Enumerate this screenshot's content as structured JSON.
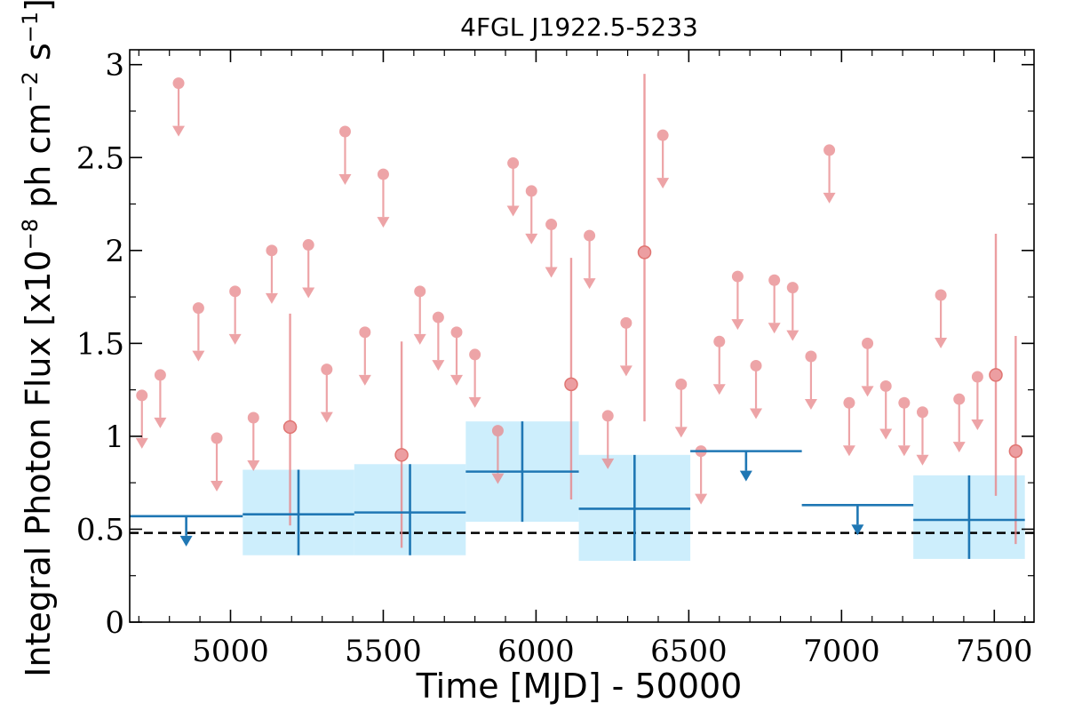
{
  "chart_data": {
    "type": "scatter",
    "title": "4FGL J1922.5-5233",
    "xlabel": "Time [MJD] - 50000",
    "ylabel": "Integral Photon Flux [x10",
    "ylabel_exp": "−8",
    "ylabel_mid": " ph cm",
    "ylabel_exp2": "−2",
    "ylabel_end": " s",
    "ylabel_exp3": "−1",
    "ylabel_close": "]",
    "xlim": [
      4670,
      7630
    ],
    "ylim": [
      0,
      3.08
    ],
    "xticks": [
      5000,
      5500,
      6000,
      6500,
      7000,
      7500
    ],
    "xtick_labels": [
      "5000",
      "5500",
      "6000",
      "6500",
      "7000",
      "7500"
    ],
    "yticks": [
      0,
      0.5,
      1,
      1.5,
      2,
      2.5,
      3
    ],
    "ytick_labels": [
      "0",
      "0.5",
      "1",
      "1.5",
      "2",
      "2.5",
      "3"
    ],
    "reference_line": 0.48,
    "colors": {
      "fine_bins": "#e8868a",
      "coarse_bins": "#1f77b4",
      "error_band": "#cdeefc",
      "reference": "#000000"
    },
    "fine_upper_limits": [
      {
        "x": 4710,
        "y": 1.22
      },
      {
        "x": 4770,
        "y": 1.33
      },
      {
        "x": 4830,
        "y": 2.9
      },
      {
        "x": 4895,
        "y": 1.69
      },
      {
        "x": 4955,
        "y": 0.99
      },
      {
        "x": 5015,
        "y": 1.78
      },
      {
        "x": 5075,
        "y": 1.1
      },
      {
        "x": 5135,
        "y": 2.0
      },
      {
        "x": 5255,
        "y": 2.03
      },
      {
        "x": 5315,
        "y": 1.36
      },
      {
        "x": 5375,
        "y": 2.64
      },
      {
        "x": 5440,
        "y": 1.56
      },
      {
        "x": 5500,
        "y": 2.41
      },
      {
        "x": 5620,
        "y": 1.78
      },
      {
        "x": 5680,
        "y": 1.64
      },
      {
        "x": 5740,
        "y": 1.56
      },
      {
        "x": 5800,
        "y": 1.44
      },
      {
        "x": 5875,
        "y": 1.03
      },
      {
        "x": 5925,
        "y": 2.47
      },
      {
        "x": 5985,
        "y": 2.32
      },
      {
        "x": 6050,
        "y": 2.14
      },
      {
        "x": 6175,
        "y": 2.08
      },
      {
        "x": 6235,
        "y": 1.11
      },
      {
        "x": 6295,
        "y": 1.61
      },
      {
        "x": 6415,
        "y": 2.62
      },
      {
        "x": 6475,
        "y": 1.28
      },
      {
        "x": 6540,
        "y": 0.92
      },
      {
        "x": 6600,
        "y": 1.51
      },
      {
        "x": 6660,
        "y": 1.86
      },
      {
        "x": 6720,
        "y": 1.38
      },
      {
        "x": 6780,
        "y": 1.84
      },
      {
        "x": 6840,
        "y": 1.8
      },
      {
        "x": 6900,
        "y": 1.43
      },
      {
        "x": 6960,
        "y": 2.54
      },
      {
        "x": 7025,
        "y": 1.18
      },
      {
        "x": 7085,
        "y": 1.5
      },
      {
        "x": 7145,
        "y": 1.27
      },
      {
        "x": 7205,
        "y": 1.18
      },
      {
        "x": 7265,
        "y": 1.13
      },
      {
        "x": 7325,
        "y": 1.76
      },
      {
        "x": 7385,
        "y": 1.2
      },
      {
        "x": 7445,
        "y": 1.32
      }
    ],
    "fine_detections": [
      {
        "x": 5195,
        "y": 1.05,
        "ylow": 0.52,
        "yhigh": 1.66
      },
      {
        "x": 5560,
        "y": 0.9,
        "ylow": 0.4,
        "yhigh": 1.51
      },
      {
        "x": 6115,
        "y": 1.28,
        "ylow": 0.66,
        "yhigh": 1.96
      },
      {
        "x": 6355,
        "y": 1.99,
        "ylow": 1.08,
        "yhigh": 2.95
      },
      {
        "x": 7505,
        "y": 1.33,
        "ylow": 0.68,
        "yhigh": 2.09
      },
      {
        "x": 7570,
        "y": 0.92,
        "ylow": 0.42,
        "yhigh": 1.54
      }
    ],
    "coarse_detections": [
      {
        "x0": 5040,
        "x1": 5405,
        "y": 0.58,
        "ylow": 0.36,
        "yhigh": 0.82
      },
      {
        "x0": 5405,
        "x1": 5770,
        "y": 0.59,
        "ylow": 0.36,
        "yhigh": 0.85
      },
      {
        "x0": 5770,
        "x1": 6140,
        "y": 0.81,
        "ylow": 0.54,
        "yhigh": 1.08
      },
      {
        "x0": 6140,
        "x1": 6505,
        "y": 0.61,
        "ylow": 0.33,
        "yhigh": 0.9
      },
      {
        "x0": 7235,
        "x1": 7600,
        "y": 0.55,
        "ylow": 0.34,
        "yhigh": 0.79
      }
    ],
    "coarse_upper_limits": [
      {
        "x0": 4670,
        "x1": 5040,
        "y": 0.57
      },
      {
        "x0": 6505,
        "x1": 6870,
        "y": 0.92
      },
      {
        "x0": 6870,
        "x1": 7235,
        "y": 0.63
      }
    ]
  }
}
